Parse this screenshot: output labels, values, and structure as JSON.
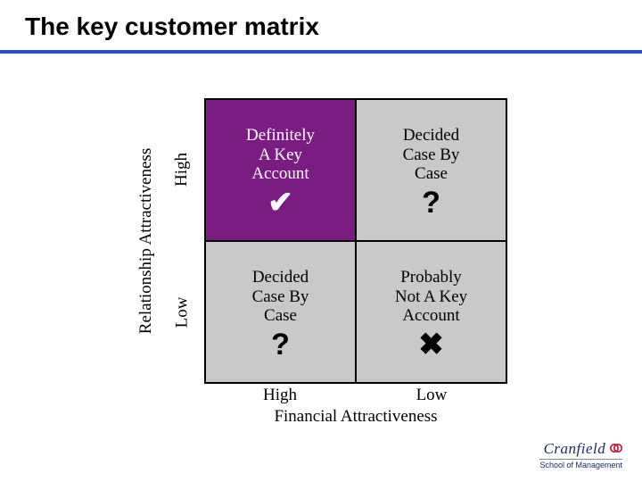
{
  "title": "The key customer matrix",
  "colors": {
    "underline": "#2a4fc0",
    "q_tl_bg": "#7a1c82",
    "q_tl_fg": "#ffffff",
    "q_tr_bg": "#c9c9c9",
    "q_tr_fg": "#000000",
    "q_bl_bg": "#c9c9c9",
    "q_bl_fg": "#000000",
    "q_br_bg": "#c9c9c9",
    "q_br_fg": "#000000",
    "logo_main": "#1a2a6c",
    "logo_accent": "#c40f2e"
  },
  "axes": {
    "y_label": "Relationship Attractiveness",
    "y_high": "High",
    "y_low": "Low",
    "x_label": "Financial Attractiveness",
    "x_high": "High",
    "x_low": "Low"
  },
  "quadrants": {
    "tl": {
      "label": "Definitely\nA Key\nAccount",
      "symbol": "✔"
    },
    "tr": {
      "label": "Decided\nCase By\nCase",
      "symbol": "?"
    },
    "bl": {
      "label": "Decided\nCase By\nCase",
      "symbol": "?"
    },
    "br": {
      "label": "Probably\nNot A Key\nAccount",
      "symbol": "✖"
    }
  },
  "footer": {
    "org": "Cranfield",
    "sub": "School of Management"
  },
  "typography": {
    "title_fontsize": 28,
    "cell_fontsize": 19,
    "symbol_fontsize": 34,
    "axis_fontsize": 19
  }
}
